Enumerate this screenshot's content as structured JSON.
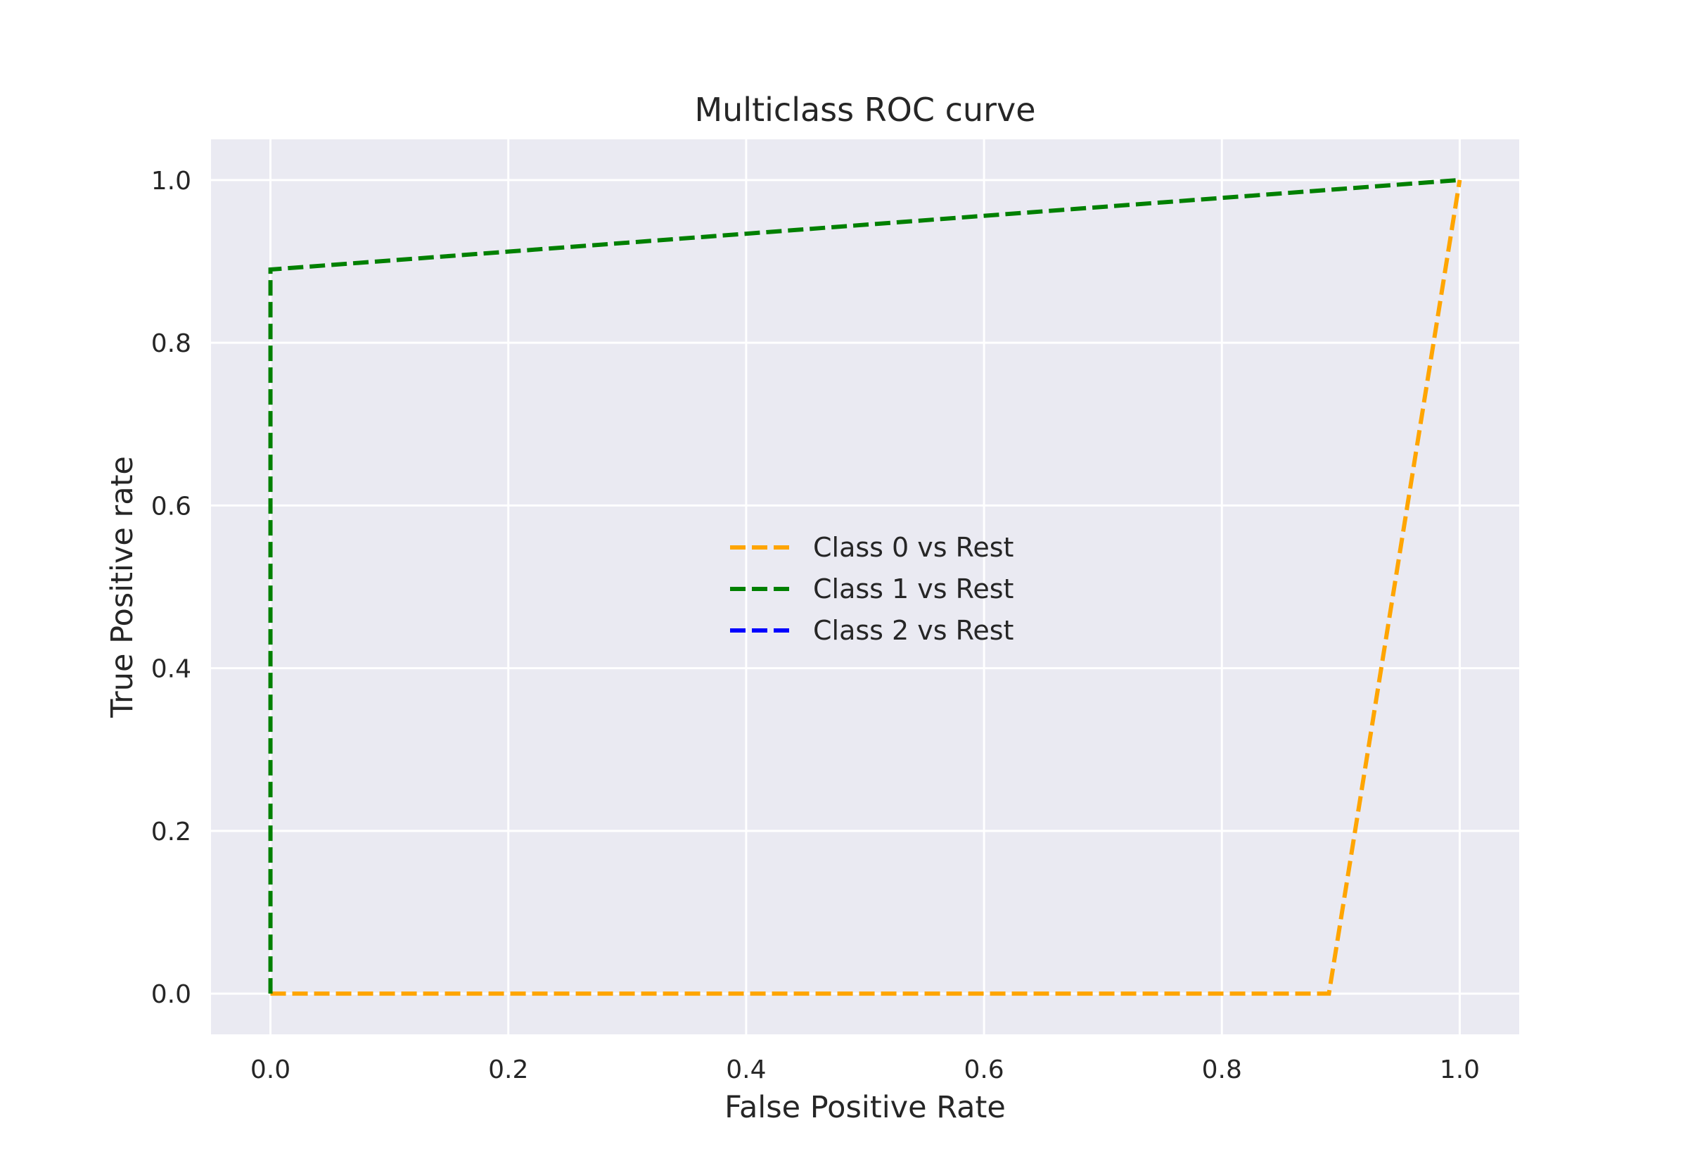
{
  "chart_data": {
    "type": "line",
    "title": "Multiclass ROC curve",
    "xlabel": "False Positive Rate",
    "ylabel": "True Positive rate",
    "xlim": [
      -0.05,
      1.05
    ],
    "ylim": [
      -0.05,
      1.05
    ],
    "xticks": [
      0.0,
      0.2,
      0.4,
      0.6,
      0.8,
      1.0
    ],
    "xtick_labels": [
      "0.0",
      "0.2",
      "0.4",
      "0.6",
      "0.8",
      "1.0"
    ],
    "yticks": [
      0.0,
      0.2,
      0.4,
      0.6,
      0.8,
      1.0
    ],
    "ytick_labels": [
      "0.0",
      "0.2",
      "0.4",
      "0.6",
      "0.8",
      "1.0"
    ],
    "grid": true,
    "background": "#EAEAF2",
    "grid_color": "#FFFFFF",
    "line_style": "dashed",
    "legend_placement": "center",
    "series": [
      {
        "name": "Class 0 vs Rest",
        "color": "#FFA500",
        "x": [
          0.0,
          0.89,
          1.0
        ],
        "y": [
          0.0,
          0.0,
          1.0
        ]
      },
      {
        "name": "Class 1 vs Rest",
        "color": "#008000",
        "x": [
          0.0,
          0.0,
          1.0
        ],
        "y": [
          0.0,
          0.89,
          1.0
        ]
      },
      {
        "name": "Class 2 vs Rest",
        "color": "#0000FF",
        "x": [],
        "y": []
      }
    ]
  }
}
